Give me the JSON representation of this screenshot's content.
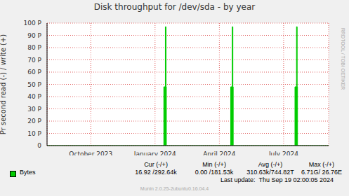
{
  "chart_data": {
    "type": "area",
    "title": "Disk throughput for /dev/sda - by year",
    "y_label": "Pr second read (-) / write (+)",
    "x": [
      2023.62,
      2024.074,
      2024.08,
      2024.0827,
      2024.084,
      2024.334,
      2024.34,
      2024.3427,
      2024.344,
      2024.584,
      2024.59,
      2024.5927,
      2024.594,
      2024.715
    ],
    "series": [
      {
        "name": "Bytes",
        "color": "#00cc00",
        "values": [
          0,
          48,
          97,
          48,
          0,
          48,
          97,
          48,
          0,
          48,
          97,
          48,
          0,
          0
        ]
      }
    ],
    "xlim": [
      2023.62,
      2024.715
    ],
    "xticks": [
      {
        "value": 2023.79,
        "label": "October 2023"
      },
      {
        "value": 2024.04,
        "label": "January 2024"
      },
      {
        "value": 2024.29,
        "label": "April 2024"
      },
      {
        "value": 2024.54,
        "label": "July 2024"
      }
    ],
    "ylim": [
      0,
      100
    ],
    "yticks": [
      0,
      {
        "value": 10,
        "label": "10 P"
      },
      {
        "value": 20,
        "label": "20 P"
      },
      {
        "value": 30,
        "label": "30 P"
      },
      {
        "value": 40,
        "label": "40 P"
      },
      {
        "value": 50,
        "label": "50 P"
      },
      {
        "value": 60,
        "label": "60 P"
      },
      {
        "value": 70,
        "label": "70 P"
      },
      {
        "value": 80,
        "label": "80 P"
      },
      {
        "value": 90,
        "label": "90 P"
      },
      {
        "value": 100,
        "label": "100 P"
      }
    ],
    "grid": true,
    "legend_table": {
      "headers": [
        "Cur (-/+)",
        "Min (-/+)",
        "Avg (-/+)",
        "Max (-/+)"
      ],
      "cells": [
        "16.92 /292.64k",
        "0.00 /181.53k",
        "310.63k/744.82T",
        "6.71G/ 26.76E"
      ]
    },
    "last_update": "Last update:  Thu Sep 19 02:00:05 2024",
    "version": "Munin 2.0.25-2ubuntu0.16.04.4",
    "watermark": "RRDTOOL / TOBI OETIKER"
  }
}
